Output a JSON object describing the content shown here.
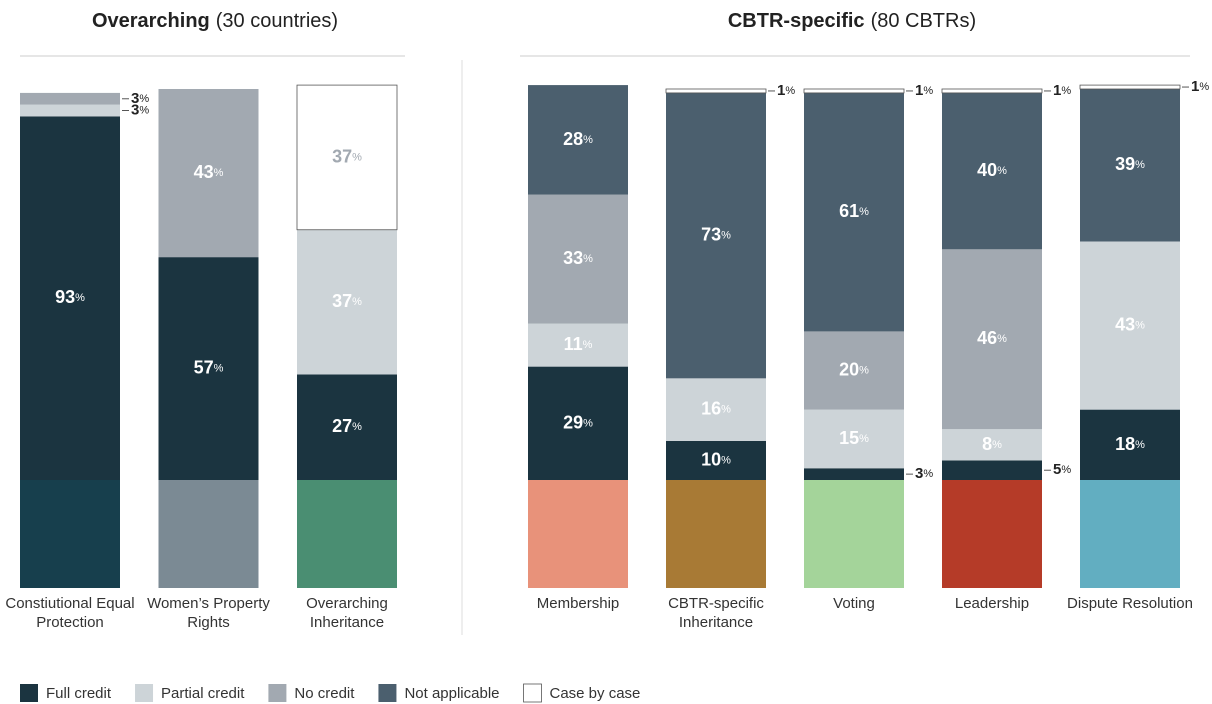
{
  "chart_data": [
    {
      "type": "stacked-bar",
      "title": "Overarching",
      "title_note": "(30 countries)",
      "categories": [
        "Constiutional Equal Protection",
        "Women’s Property Rights",
        "Overarching Inheritance"
      ],
      "icon_colors": [
        "#173f4d",
        "#7b8a94",
        "#4a8e72"
      ],
      "ylim": [
        0,
        100
      ],
      "series": [
        {
          "name": "Full credit",
          "color": "#1b3440",
          "label_color": "#ffffff",
          "values": [
            93,
            57,
            27
          ],
          "value_labels": [
            "93%",
            "57%",
            "27%"
          ]
        },
        {
          "name": "Partial credit",
          "color": "#cdd4d8",
          "label_color": "#ffffff",
          "values": [
            3,
            null,
            37
          ],
          "value_labels": [
            "3%",
            null,
            "37%"
          ]
        },
        {
          "name": "No credit",
          "color": "#a2a9b1",
          "label_color": "#ffffff",
          "values": [
            3,
            43,
            null
          ],
          "value_labels": [
            "3%",
            "43%",
            null
          ]
        },
        {
          "name": "Not applicable",
          "color": "#4b5f6e",
          "label_color": "#ffffff",
          "values": [
            null,
            null,
            null
          ],
          "value_labels": [
            null,
            null,
            null
          ]
        },
        {
          "name": "Case by case",
          "color": "#ffffff",
          "label_color": "#a2a9b1",
          "values": [
            null,
            null,
            37
          ],
          "value_labels": [
            null,
            null,
            "37%"
          ]
        }
      ]
    },
    {
      "type": "stacked-bar",
      "title": "CBTR-specific",
      "title_note": "(80 CBTRs)",
      "categories": [
        "Membership",
        "CBTR-specific Inheritance",
        "Voting",
        "Leadership",
        "Dispute Resolution"
      ],
      "icon_colors": [
        "#e8927a",
        "#a87a35",
        "#a4d49a",
        "#b53b28",
        "#62aec1"
      ],
      "ylim": [
        0,
        100
      ],
      "series": [
        {
          "name": "Full credit",
          "color": "#1b3440",
          "label_color": "#ffffff",
          "values": [
            29,
            10,
            3,
            5,
            18
          ],
          "value_labels": [
            "29%",
            "10%",
            "3%",
            "5%",
            "18%"
          ]
        },
        {
          "name": "Partial credit",
          "color": "#cdd4d8",
          "label_color": "#ffffff",
          "values": [
            11,
            16,
            15,
            8,
            43
          ],
          "value_labels": [
            "11%",
            "16%",
            "15%",
            "8%",
            "43%"
          ]
        },
        {
          "name": "No credit",
          "color": "#a2a9b1",
          "label_color": "#ffffff",
          "values": [
            33,
            null,
            20,
            46,
            null
          ],
          "value_labels": [
            "33%",
            null,
            "20%",
            "46%",
            null
          ]
        },
        {
          "name": "Not applicable",
          "color": "#4b5f6e",
          "label_color": "#ffffff",
          "values": [
            28,
            73,
            61,
            40,
            39
          ],
          "value_labels": [
            "28%",
            "73%",
            "61%",
            "40%",
            "39%"
          ]
        },
        {
          "name": "Case by case",
          "color": "#ffffff",
          "label_color": "#a2a9b1",
          "values": [
            null,
            1,
            1,
            1,
            1
          ],
          "value_labels": [
            null,
            "1%",
            "1%",
            "1%",
            "1%"
          ]
        }
      ]
    }
  ]
}
